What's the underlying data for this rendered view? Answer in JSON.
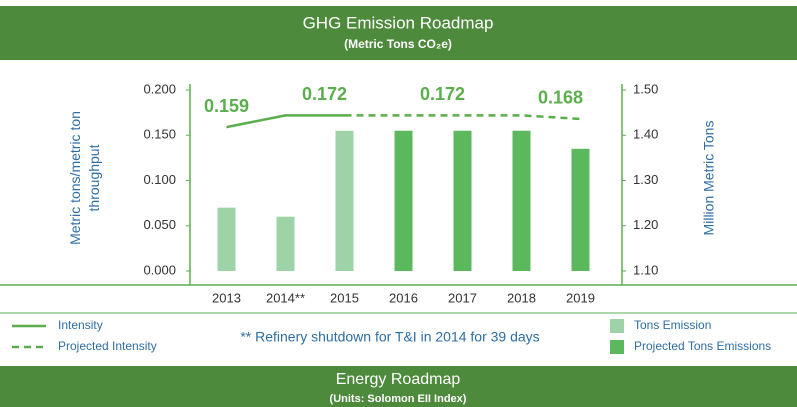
{
  "header": {
    "title": "GHG Emission Roadmap",
    "subtitle": "(Metric Tons CO₂e)"
  },
  "chart_data": {
    "type": "bar",
    "categories": [
      "2013",
      "2014**",
      "2015",
      "2016",
      "2017",
      "2018",
      "2019"
    ],
    "ylabel": "Metric tons/metric ton throughput",
    "y2label": "Million Metric Tons",
    "ylim": [
      0,
      0.2
    ],
    "yticks": [
      {
        "value": 0,
        "label": "0.000"
      },
      {
        "value": 0.05,
        "label": "0.050"
      },
      {
        "value": 0.1,
        "label": "0.100"
      },
      {
        "value": 0.15,
        "label": "0.150"
      },
      {
        "value": 0.2,
        "label": "0.200"
      }
    ],
    "y2lim": [
      1.1,
      1.5
    ],
    "y2ticks": [
      {
        "value": 1.1,
        "label": "1.10"
      },
      {
        "value": 1.2,
        "label": "1.20"
      },
      {
        "value": 1.3,
        "label": "1.30"
      },
      {
        "value": 1.4,
        "label": "1.40"
      },
      {
        "value": 1.5,
        "label": "1.50"
      }
    ],
    "series": [
      {
        "name": "Intensity",
        "type": "line",
        "style": "solid",
        "color": "#5aae4c",
        "values": [
          0.159,
          0.172,
          0.172,
          null,
          null,
          null,
          null
        ],
        "value_labels": [
          "0.159",
          null,
          "0.172",
          null,
          null,
          null,
          null
        ]
      },
      {
        "name": "Projected Intensity",
        "type": "line",
        "style": "dashed",
        "color": "#5aae4c",
        "values": [
          null,
          null,
          0.172,
          0.172,
          0.172,
          0.172,
          0.168
        ],
        "value_labels": [
          null,
          null,
          null,
          null,
          "0.172",
          null,
          "0.168"
        ]
      },
      {
        "name": "Tons Emission",
        "type": "bar",
        "axis": "y2",
        "color": "#9dd3a6",
        "values": [
          1.24,
          1.22,
          1.41,
          null,
          null,
          null,
          null
        ]
      },
      {
        "name": "Projected Tons Emissions",
        "type": "bar",
        "axis": "y2",
        "color": "#5cb85c",
        "values": [
          null,
          null,
          null,
          1.41,
          1.41,
          1.41,
          1.37
        ]
      }
    ],
    "annotation": "** Refinery shutdown for T&I in 2014 for 39 days"
  },
  "footer": {
    "title": "Energy Roadmap",
    "subtitle": "(Units: Solomon EII Index)"
  }
}
